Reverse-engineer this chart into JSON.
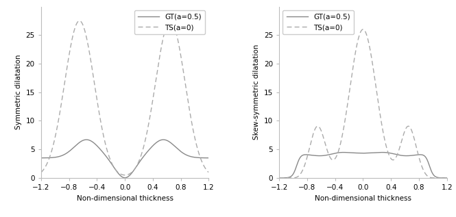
{
  "xlim": [
    -1.2,
    1.2
  ],
  "ylim_left": [
    0,
    30
  ],
  "ylim_right": [
    0,
    30
  ],
  "yticks_left": [
    0,
    5,
    10,
    15,
    20,
    25
  ],
  "yticks_right": [
    0,
    5,
    10,
    15,
    20,
    25
  ],
  "xticks": [
    -1.2,
    -0.8,
    -0.4,
    0.0,
    0.4,
    0.8,
    1.2
  ],
  "xlabel": "Non-dimensional thickness",
  "ylabel_left": "Symmetric dilatation",
  "ylabel_right": "Skew-symmetric dilatation",
  "legend_gt": "GT(a=0.5)",
  "legend_ts": "TS(a=0)",
  "line_color_gt": "#888888",
  "line_color_ts": "#aaaaaa",
  "bg_color": "#ffffff",
  "figsize": [
    6.65,
    3.17
  ],
  "dpi": 100
}
